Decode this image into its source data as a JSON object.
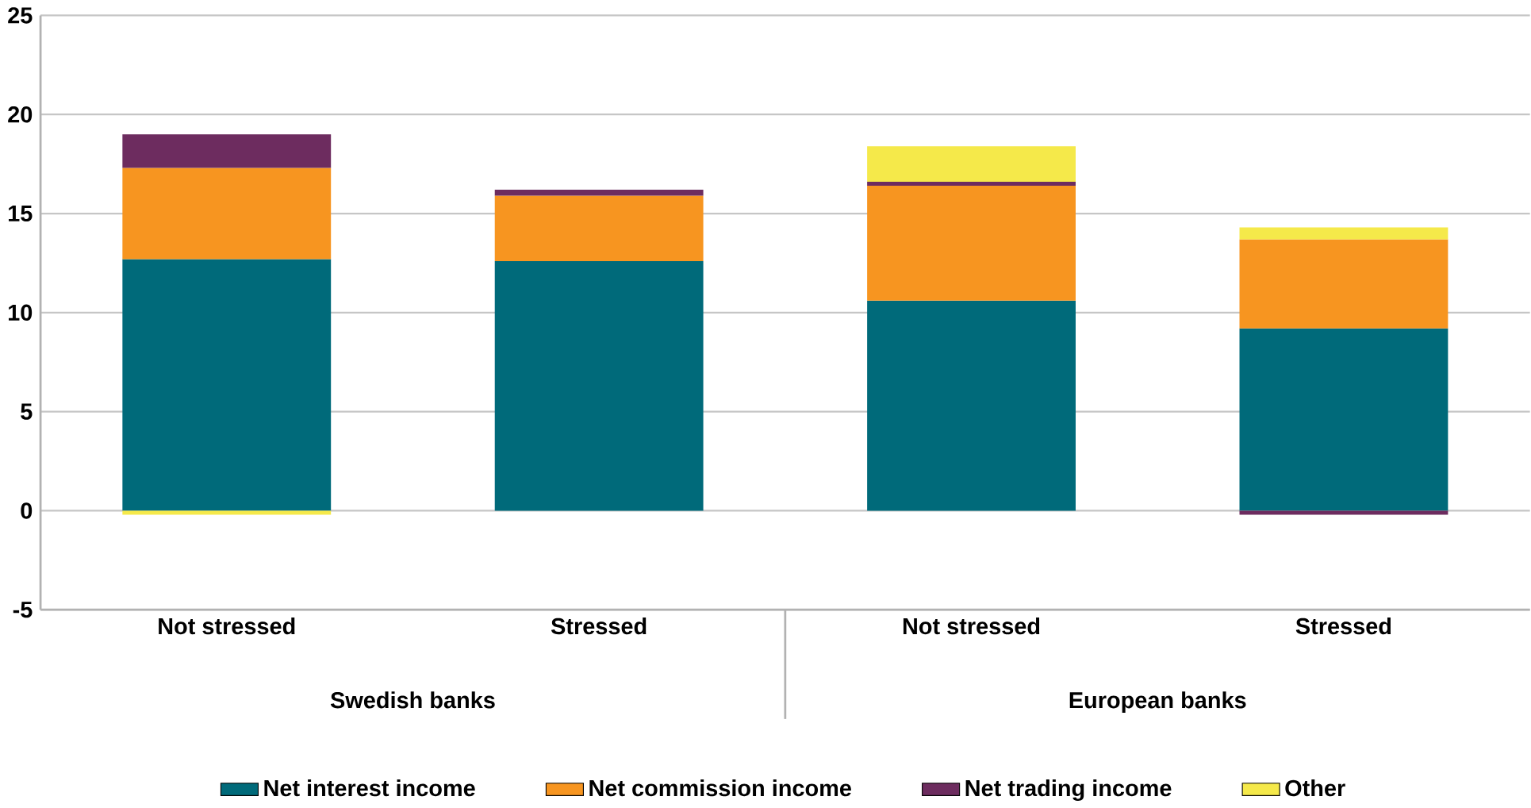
{
  "chart_data": {
    "type": "bar",
    "stacked": true,
    "categories": [
      "Not stressed",
      "Stressed",
      "Not stressed",
      "Stressed"
    ],
    "annotations": [
      "Swedish banks",
      "European banks"
    ],
    "series": [
      {
        "name": "Net interest income",
        "color": "#006a7a",
        "values": [
          12.7,
          12.6,
          10.6,
          9.2
        ]
      },
      {
        "name": "Net commission income",
        "color": "#f79520",
        "values": [
          4.6,
          3.3,
          5.8,
          4.5
        ]
      },
      {
        "name": "Net trading income",
        "color": "#6d2c5f",
        "values": [
          1.7,
          0.3,
          0.2,
          -0.2
        ]
      },
      {
        "name": "Other",
        "color": "#f5e94a",
        "values": [
          -0.2,
          0,
          1.8,
          0.6
        ]
      }
    ],
    "ylim": [
      -5,
      25
    ],
    "yticks": [
      -5,
      0,
      5,
      10,
      15,
      20,
      25
    ],
    "grid": "y",
    "legend": "bottom"
  }
}
